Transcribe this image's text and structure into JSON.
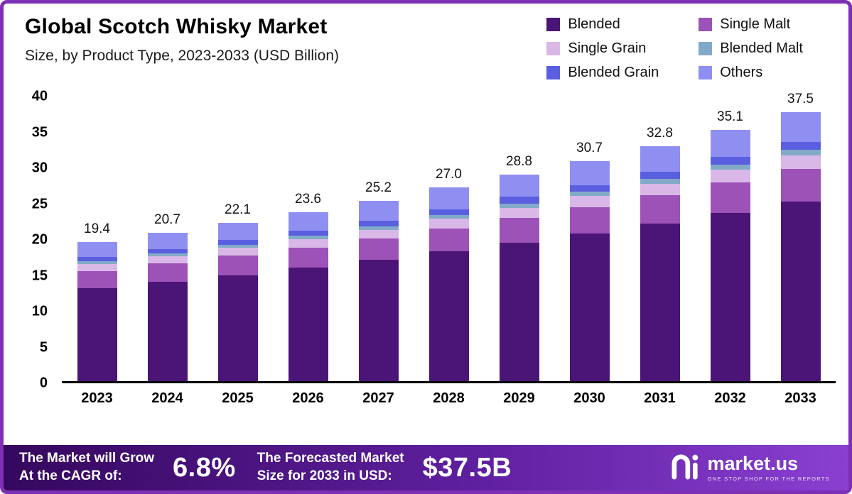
{
  "header": {
    "title": "Global Scotch Whisky Market",
    "subtitle": "Size, by Product Type, 2023-2033 (USD Billion)"
  },
  "chart_data": {
    "type": "bar",
    "stacked": true,
    "title": "Global Scotch Whisky Market Size, by Product Type, 2023-2033 (USD Billion)",
    "xlabel": "",
    "ylabel": "",
    "ylim": [
      0,
      40
    ],
    "yticks": [
      0,
      5,
      10,
      15,
      20,
      25,
      30,
      35,
      40
    ],
    "grid": false,
    "legend_position": "top-right",
    "categories": [
      "2023",
      "2024",
      "2025",
      "2026",
      "2027",
      "2028",
      "2029",
      "2030",
      "2031",
      "2032",
      "2033"
    ],
    "totals": [
      19.4,
      20.7,
      22.1,
      23.6,
      25.2,
      27.0,
      28.8,
      30.7,
      32.8,
      35.1,
      37.5
    ],
    "series": [
      {
        "name": "Blended",
        "color": "#4a1577",
        "values": [
          13.0,
          13.9,
          14.8,
          15.8,
          16.9,
          18.1,
          19.3,
          20.6,
          22.0,
          23.5,
          25.1
        ]
      },
      {
        "name": "Single Malt",
        "color": "#9c52b6",
        "values": [
          2.3,
          2.5,
          2.7,
          2.8,
          3.0,
          3.2,
          3.5,
          3.7,
          3.9,
          4.2,
          4.5
        ]
      },
      {
        "name": "Single Grain",
        "color": "#d9b8e8",
        "values": [
          1.0,
          1.0,
          1.1,
          1.2,
          1.2,
          1.4,
          1.4,
          1.5,
          1.6,
          1.8,
          1.9
        ]
      },
      {
        "name": "Blended Malt",
        "color": "#82aac8",
        "values": [
          0.4,
          0.4,
          0.4,
          0.5,
          0.5,
          0.5,
          0.6,
          0.6,
          0.7,
          0.7,
          0.8
        ]
      },
      {
        "name": "Blended Grain",
        "color": "#5a5fe0",
        "values": [
          0.6,
          0.6,
          0.7,
          0.7,
          0.8,
          0.8,
          0.9,
          0.9,
          1.0,
          1.1,
          1.1
        ]
      },
      {
        "name": "Others",
        "color": "#8f8ff2",
        "values": [
          2.1,
          2.3,
          2.4,
          2.6,
          2.8,
          3.0,
          3.1,
          3.4,
          3.6,
          3.8,
          4.1
        ]
      }
    ]
  },
  "banner": {
    "cagr_label_line1": "The Market will Grow",
    "cagr_label_line2": "At the CAGR of:",
    "cagr_value": "6.8%",
    "forecast_label_line1": "The Forecasted Market",
    "forecast_label_line2": "Size for 2033 in USD:",
    "forecast_value": "$37.5B",
    "logo_text": "market.us",
    "logo_tagline": "ONE STOP SHOP FOR THE REPORTS"
  },
  "colors": {
    "frame_border": "#7d30b5",
    "banner_gradient_start": "#35085e",
    "banner_gradient_end": "#8a3fd1",
    "axis_line": "#000000"
  }
}
